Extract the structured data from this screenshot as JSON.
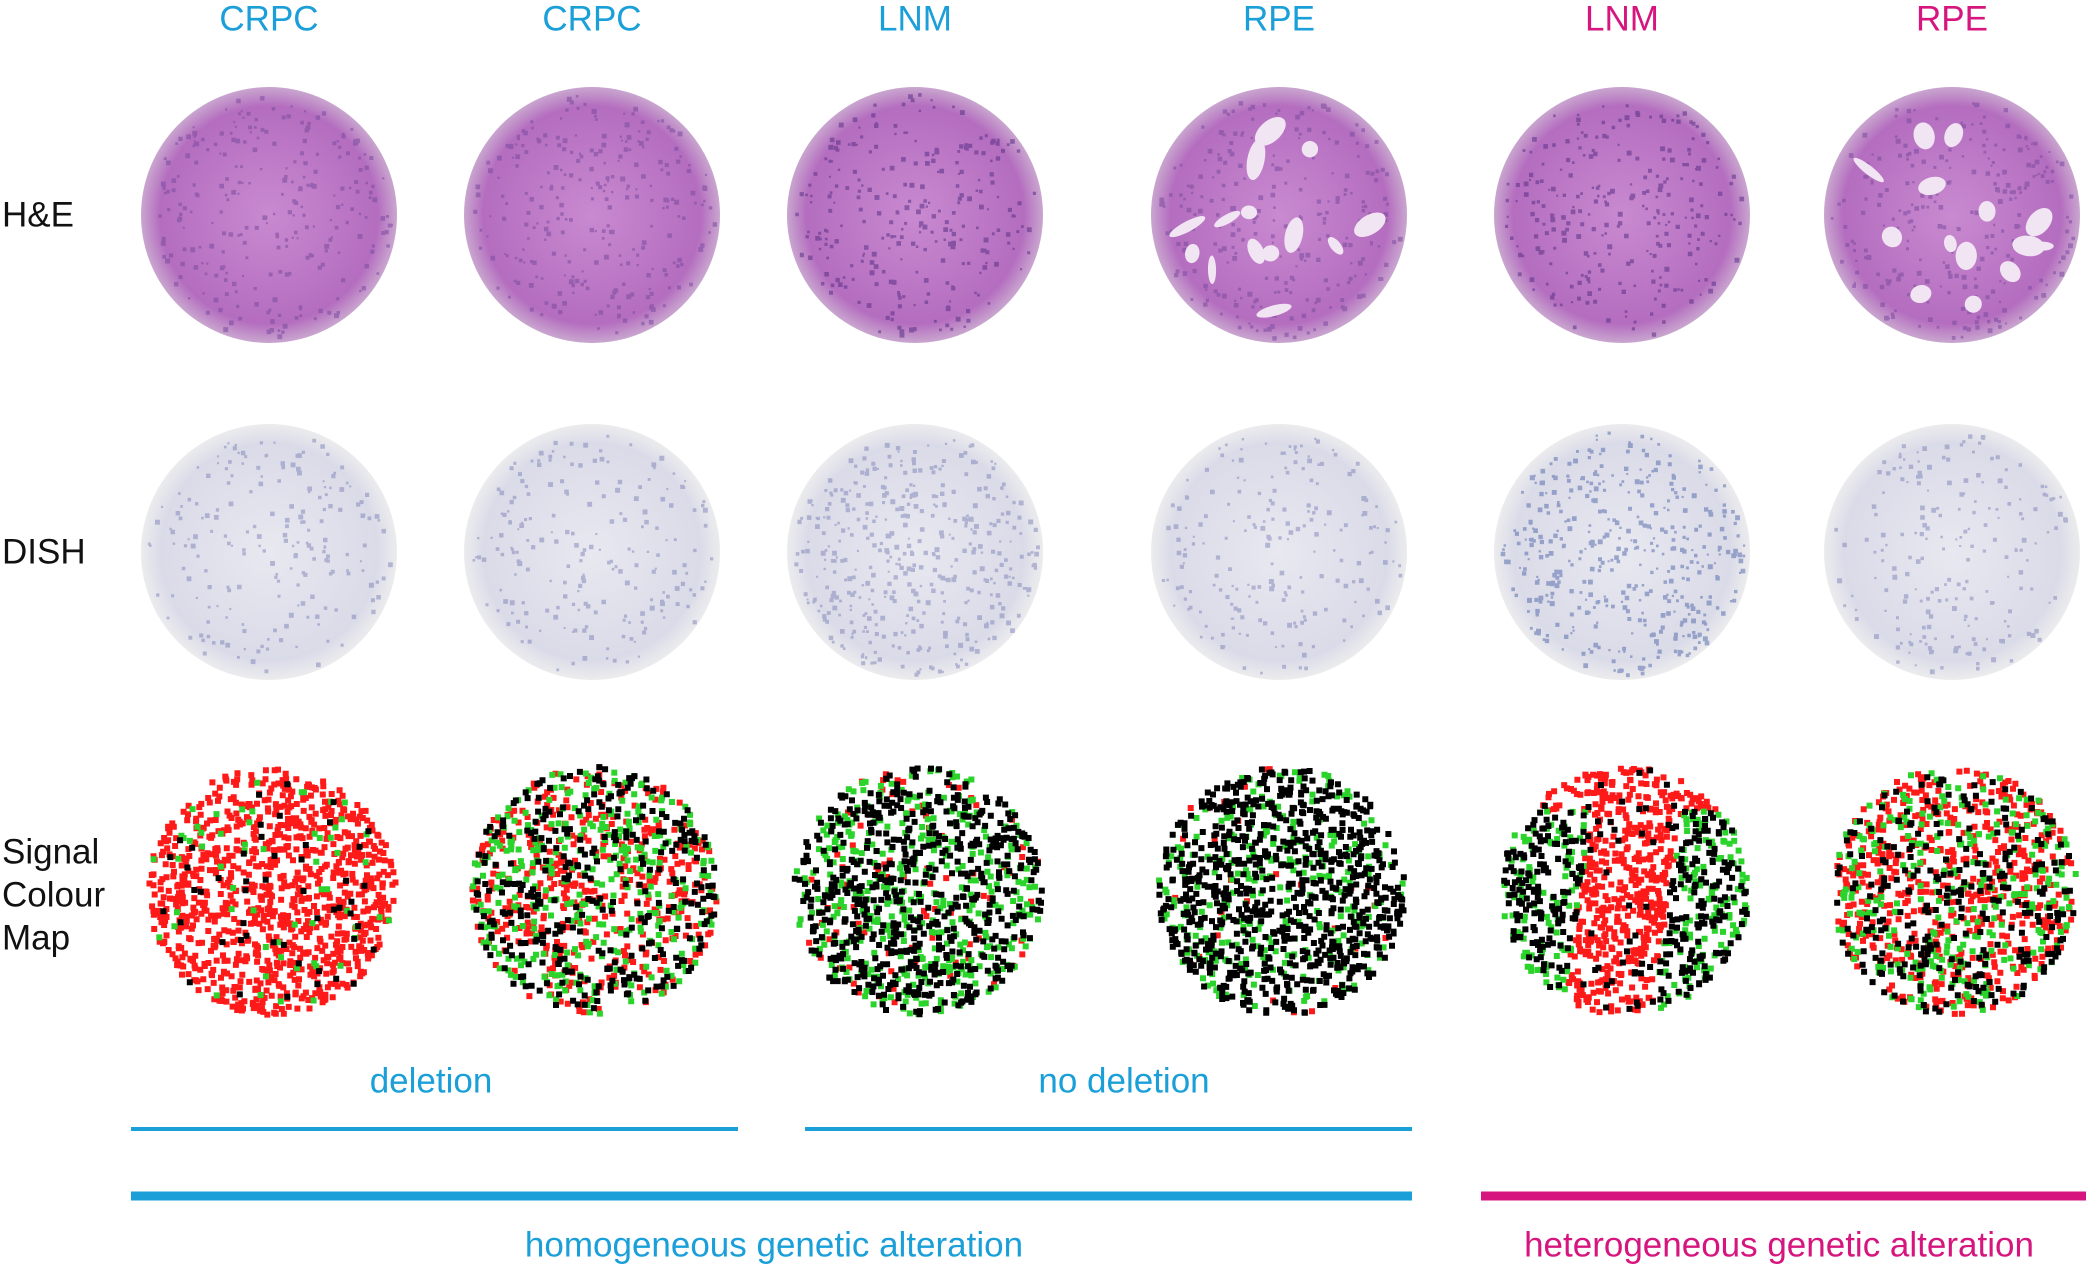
{
  "columns": [
    {
      "label": "CRPC"
    },
    {
      "label": "CRPC"
    },
    {
      "label": "LNM"
    },
    {
      "label": "RPE"
    },
    {
      "label": "LNM"
    },
    {
      "label": "RPE"
    }
  ],
  "rows": [
    {
      "label": "H&E"
    },
    {
      "label": "DISH"
    },
    {
      "label": "Signal Colour Map"
    }
  ],
  "groups": [
    {
      "label": "deletion"
    },
    {
      "label": "no deletion"
    }
  ],
  "alterations": [
    {
      "label": "homogeneous genetic alteration"
    },
    {
      "label": "heterogeneous genetic alteration"
    }
  ]
}
